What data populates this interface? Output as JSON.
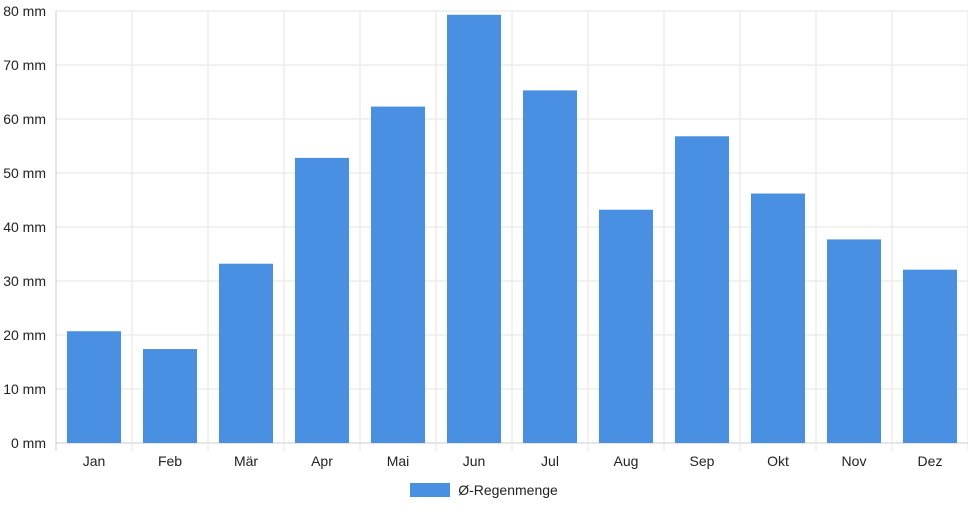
{
  "chart_data": {
    "type": "bar",
    "categories": [
      "Jan",
      "Feb",
      "Mär",
      "Apr",
      "Mai",
      "Jun",
      "Jul",
      "Aug",
      "Sep",
      "Okt",
      "Nov",
      "Dez"
    ],
    "series": [
      {
        "name": "Ø-Regenmenge",
        "values": [
          20.7,
          17.4,
          33.2,
          52.8,
          62.3,
          79.3,
          65.3,
          43.2,
          56.8,
          46.2,
          37.7,
          32.1
        ]
      }
    ],
    "yticks": [
      "0 mm",
      "10 mm",
      "20 mm",
      "30 mm",
      "40 mm",
      "50 mm",
      "60 mm",
      "70 mm",
      "80 mm"
    ],
    "ylim": [
      0,
      80
    ],
    "grid": true,
    "legend_position": "bottom",
    "colors": {
      "bar": "#4a90e2",
      "grid": "#e5e5e5",
      "axis": "#cccccc"
    }
  }
}
